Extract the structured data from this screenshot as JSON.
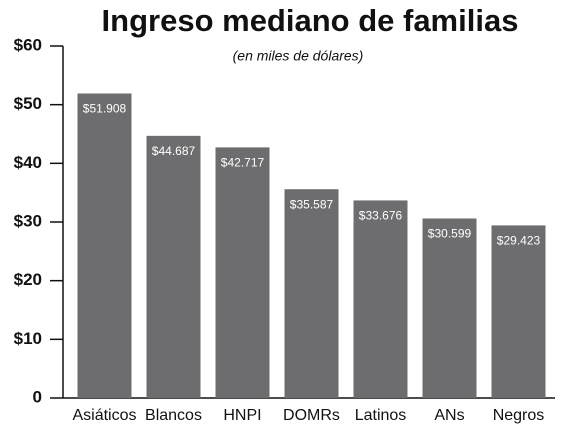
{
  "chart_data": {
    "type": "bar",
    "title": "Ingreso mediano de familias",
    "subtitle": "(en miles de dólares)",
    "categories": [
      "Asiáticos",
      "Blancos",
      "HNPI",
      "DOMRs",
      "Latinos",
      "ANs",
      "Negros"
    ],
    "values": [
      51.908,
      44.687,
      42.717,
      35.587,
      33.676,
      30.599,
      29.423
    ],
    "value_labels": [
      "$51.908",
      "$44.687",
      "$42.717",
      "$35.587",
      "$33.676",
      "$30.599",
      "$29.423"
    ],
    "color": "#6d6d6f",
    "ylim": [
      0,
      60
    ],
    "yticks": [
      0,
      {
        "value": 10,
        "label": "$10"
      },
      {
        "value": 20,
        "label": "$20"
      },
      {
        "value": 30,
        "label": "$30"
      },
      {
        "value": 40,
        "label": "$40"
      },
      {
        "value": 50,
        "label": "$50"
      },
      {
        "value": 60,
        "label": "$60"
      }
    ]
  }
}
